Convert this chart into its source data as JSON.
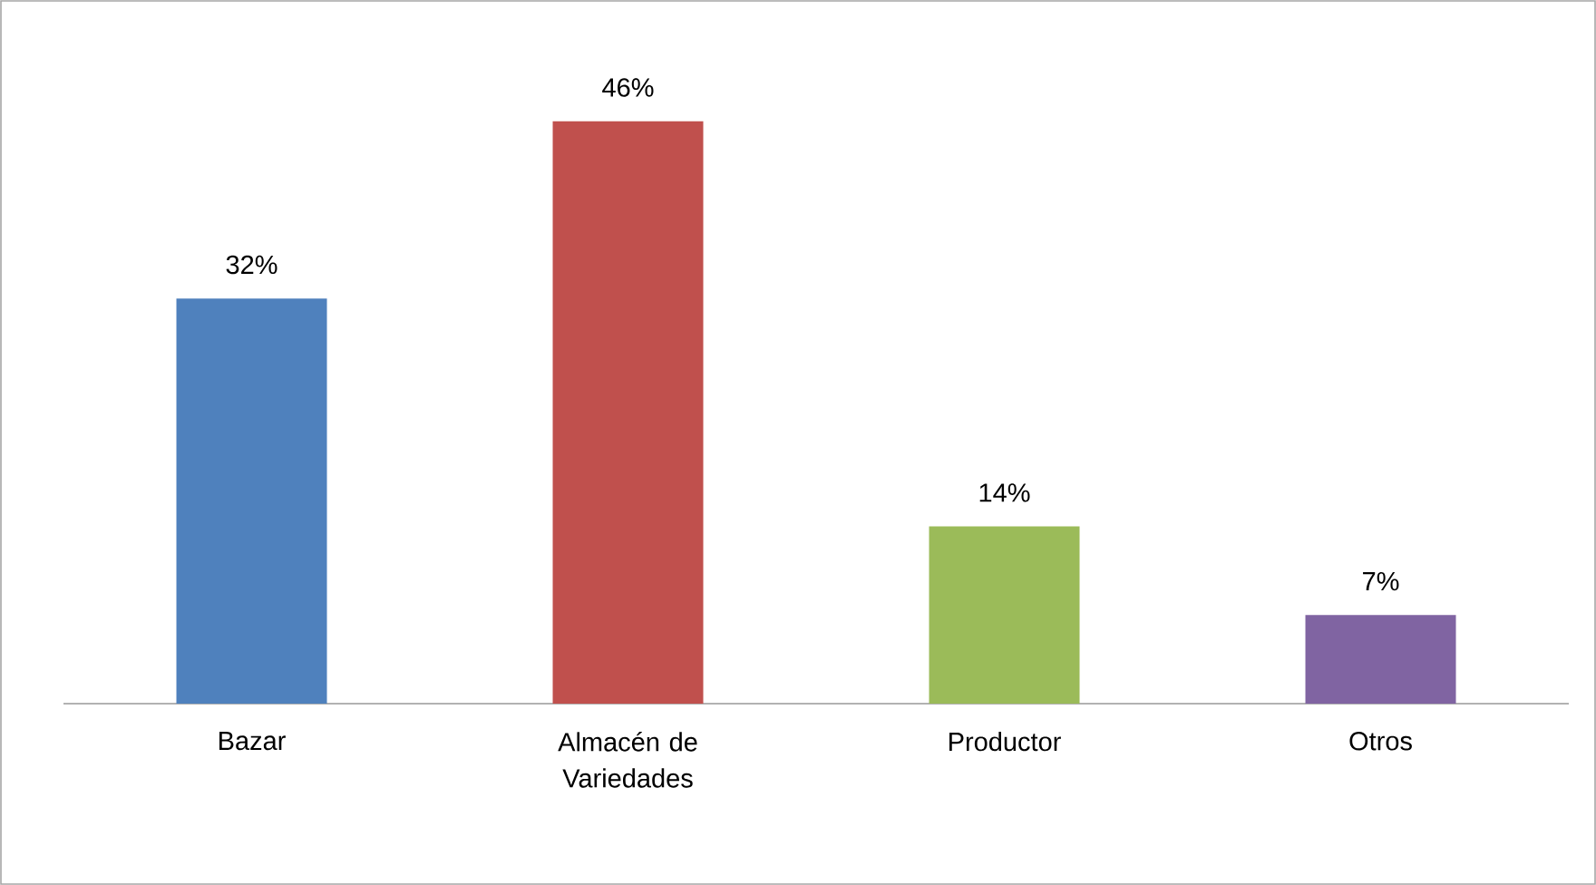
{
  "chart_data": {
    "type": "bar",
    "categories": [
      "Bazar",
      "Almacén de Variedades",
      "Productor",
      "Otros"
    ],
    "values": [
      32,
      46,
      14,
      7
    ],
    "value_labels": [
      "32%",
      "46%",
      "14%",
      "7%"
    ],
    "colors": [
      "#4f81bd",
      "#c0504d",
      "#9bbb59",
      "#8064a2"
    ],
    "tick_labels": "x"
  }
}
